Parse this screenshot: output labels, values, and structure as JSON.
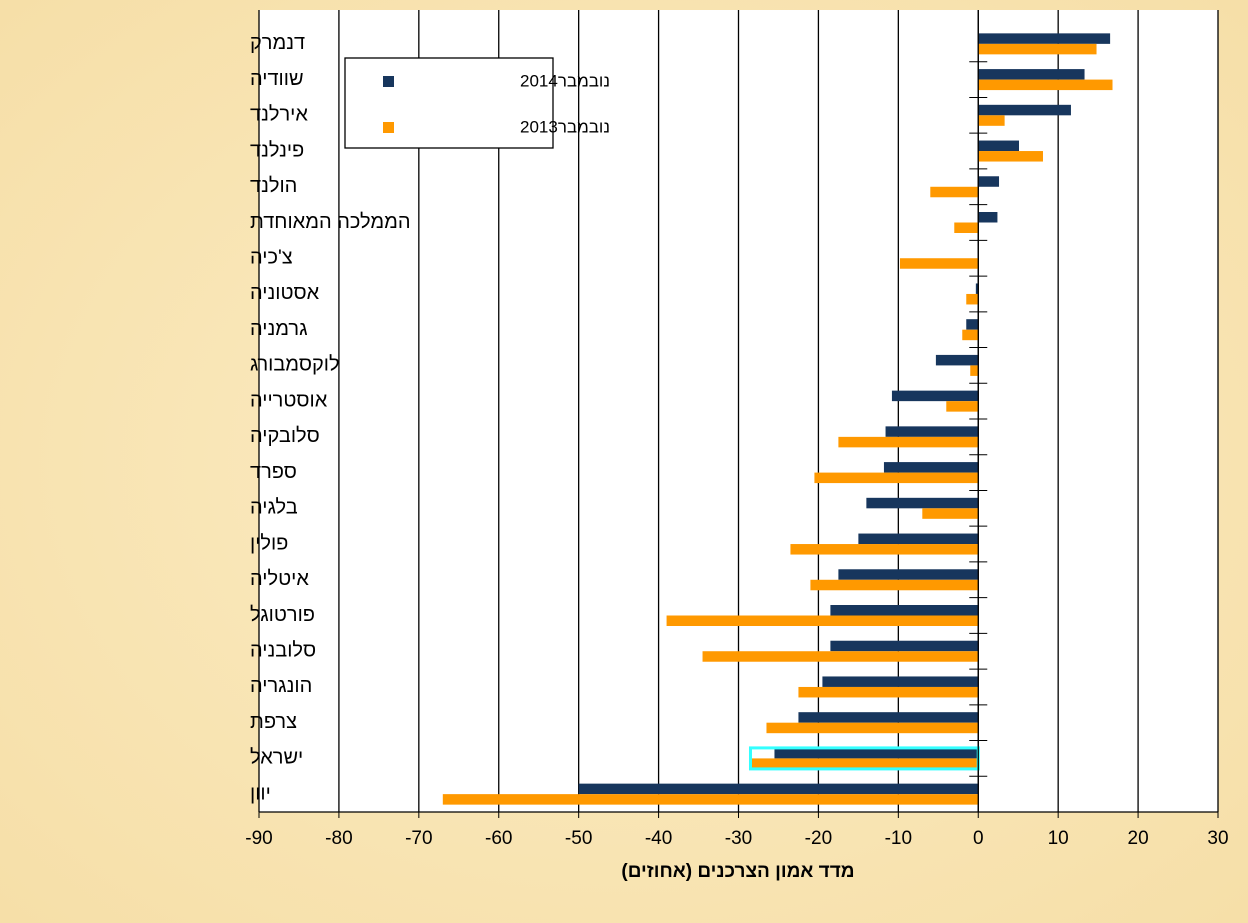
{
  "chart_data": {
    "type": "hbar",
    "xlabel": "מדד אמון הצרכנים (אחוזים)",
    "categories": [
      "דנמרק",
      "שוודיה",
      "אירלנד",
      "פינלנד",
      "הולנד",
      "הממלכה המאוחדת",
      "צ'כיה",
      "אסטוניה",
      "גרמניה",
      "לוקסמבורג",
      "אוסטרייה",
      "סלובקיה",
      "ספרד",
      "בלגיה",
      "פולין",
      "איטליה",
      "פורטוגל",
      "סלובניה",
      "הונגריה",
      "צרפת",
      "ישראל",
      "יוון"
    ],
    "series": [
      {
        "name": "נובמבר2014",
        "color": "#17365d",
        "values": [
          16.5,
          13.3,
          11.6,
          5.1,
          2.6,
          2.4,
          0,
          -0.3,
          -1.5,
          -5.3,
          -10.8,
          -11.6,
          -11.8,
          -14.0,
          -15.0,
          -17.5,
          -18.5,
          -18.5,
          -19.5,
          -22.5,
          -25.5,
          -50.0
        ]
      },
      {
        "name": "נובמבר2013",
        "color": "#ff9900",
        "values": [
          14.8,
          16.8,
          3.3,
          8.1,
          -6.0,
          -3.0,
          -9.8,
          -1.5,
          -2.0,
          -1.0,
          -4.0,
          -17.5,
          -20.5,
          -7.0,
          -23.5,
          -21.0,
          -39.0,
          -34.5,
          -22.5,
          -26.5,
          -28.5,
          -67.0
        ]
      }
    ],
    "xlim": [
      -90,
      30
    ],
    "xticks": [
      -90,
      -80,
      -70,
      -60,
      -50,
      -40,
      -30,
      -20,
      -10,
      0,
      10,
      20,
      30
    ],
    "grid": true,
    "legend": "top-left",
    "highlight": {
      "category_index": 20,
      "color": "#33ffff"
    }
  }
}
